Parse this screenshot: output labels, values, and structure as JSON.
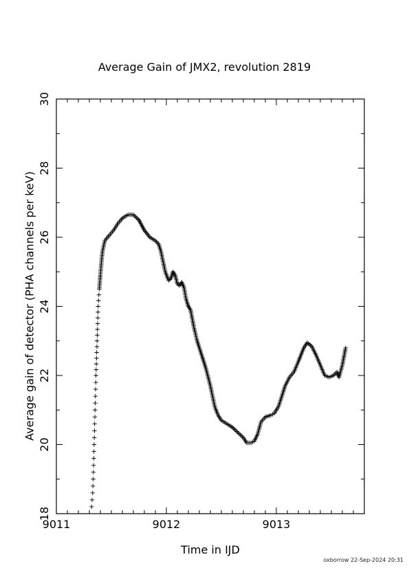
{
  "chart_data": {
    "type": "scatter",
    "title": "Average Gain of JMX2, revolution 2819",
    "xlabel": "Time in IJD",
    "ylabel": "Average gain of detector (PHA channels per keV)",
    "xlim": [
      9011,
      9013.8
    ],
    "ylim": [
      18,
      30
    ],
    "x_ticks": [
      9011,
      9012,
      9013
    ],
    "y_ticks": [
      18,
      20,
      22,
      24,
      26,
      28,
      30
    ],
    "marker": "+",
    "color": "#000000",
    "grid": false,
    "series": [
      {
        "points": [
          [
            9011.32,
            18.2
          ],
          [
            9011.33,
            18.6
          ],
          [
            9011.335,
            19.0
          ],
          [
            9011.34,
            19.6
          ],
          [
            9011.345,
            20.2
          ],
          [
            9011.35,
            20.8
          ],
          [
            9011.355,
            21.4
          ],
          [
            9011.36,
            22.0
          ],
          [
            9011.365,
            22.5
          ],
          [
            9011.37,
            23.0
          ],
          [
            9011.375,
            23.5
          ],
          [
            9011.38,
            24.0
          ],
          [
            9011.39,
            24.5
          ],
          [
            9011.4,
            24.9
          ],
          [
            9011.41,
            25.3
          ],
          [
            9011.42,
            25.6
          ],
          [
            9011.44,
            25.9
          ],
          [
            9011.48,
            26.05
          ],
          [
            9011.52,
            26.2
          ],
          [
            9011.56,
            26.4
          ],
          [
            9011.6,
            26.55
          ],
          [
            9011.65,
            26.65
          ],
          [
            9011.7,
            26.65
          ],
          [
            9011.75,
            26.5
          ],
          [
            9011.8,
            26.2
          ],
          [
            9011.85,
            26.0
          ],
          [
            9011.9,
            25.9
          ],
          [
            9011.93,
            25.8
          ],
          [
            9011.95,
            25.6
          ],
          [
            9011.97,
            25.3
          ],
          [
            9011.99,
            25.0
          ],
          [
            9012.02,
            24.75
          ],
          [
            9012.04,
            24.8
          ],
          [
            9012.06,
            25.0
          ],
          [
            9012.08,
            24.9
          ],
          [
            9012.1,
            24.65
          ],
          [
            9012.12,
            24.6
          ],
          [
            9012.14,
            24.7
          ],
          [
            9012.16,
            24.55
          ],
          [
            9012.18,
            24.2
          ],
          [
            9012.2,
            24.0
          ],
          [
            9012.22,
            23.9
          ],
          [
            9012.25,
            23.4
          ],
          [
            9012.28,
            23.0
          ],
          [
            9012.32,
            22.6
          ],
          [
            9012.36,
            22.2
          ],
          [
            9012.4,
            21.7
          ],
          [
            9012.44,
            21.1
          ],
          [
            9012.47,
            20.85
          ],
          [
            9012.5,
            20.7
          ],
          [
            9012.55,
            20.6
          ],
          [
            9012.6,
            20.5
          ],
          [
            9012.65,
            20.35
          ],
          [
            9012.7,
            20.2
          ],
          [
            9012.73,
            20.05
          ],
          [
            9012.77,
            20.05
          ],
          [
            9012.8,
            20.1
          ],
          [
            9012.83,
            20.3
          ],
          [
            9012.86,
            20.65
          ],
          [
            9012.9,
            20.8
          ],
          [
            9012.95,
            20.85
          ],
          [
            9012.98,
            20.9
          ],
          [
            9013.02,
            21.1
          ],
          [
            9013.05,
            21.4
          ],
          [
            9013.08,
            21.7
          ],
          [
            9013.12,
            21.95
          ],
          [
            9013.16,
            22.1
          ],
          [
            9013.2,
            22.4
          ],
          [
            9013.25,
            22.8
          ],
          [
            9013.28,
            22.95
          ],
          [
            9013.32,
            22.85
          ],
          [
            9013.36,
            22.6
          ],
          [
            9013.4,
            22.3
          ],
          [
            9013.44,
            22.0
          ],
          [
            9013.48,
            21.95
          ],
          [
            9013.52,
            22.0
          ],
          [
            9013.55,
            22.1
          ],
          [
            9013.57,
            21.95
          ],
          [
            9013.6,
            22.3
          ],
          [
            9013.63,
            22.8
          ]
        ]
      }
    ]
  },
  "footer": "oxborrow 22-Sep-2024 20:31"
}
